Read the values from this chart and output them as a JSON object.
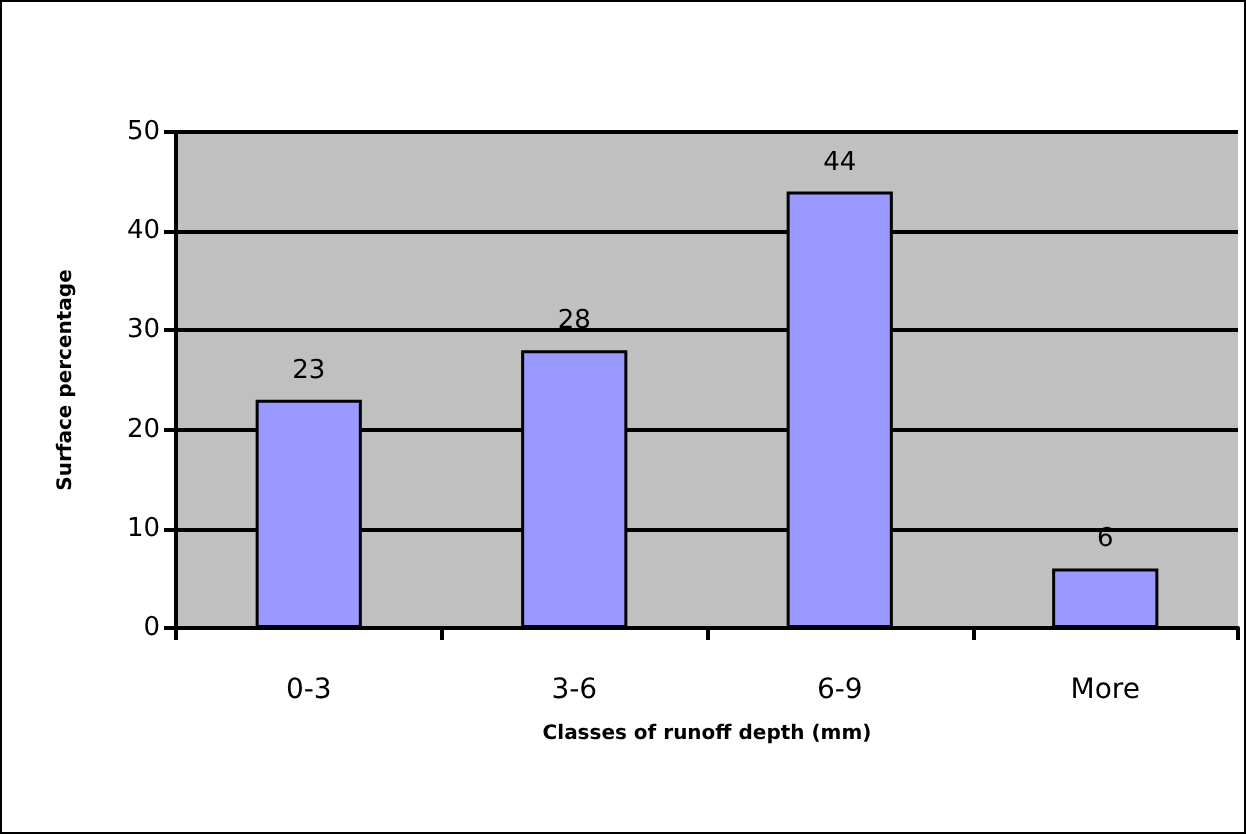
{
  "chart_data": {
    "type": "bar",
    "xlabel": "Classes of runoff depth (mm)",
    "ylabel": "Surface percentage",
    "categories": [
      "0-3",
      "3-6",
      "6-9",
      "More"
    ],
    "values": [
      23,
      28,
      44,
      6
    ],
    "data_labels": true,
    "color": "#9999ff",
    "ylim": [
      0,
      50
    ],
    "yticks": [
      0,
      10,
      20,
      30,
      40,
      50
    ],
    "grid": "y"
  }
}
